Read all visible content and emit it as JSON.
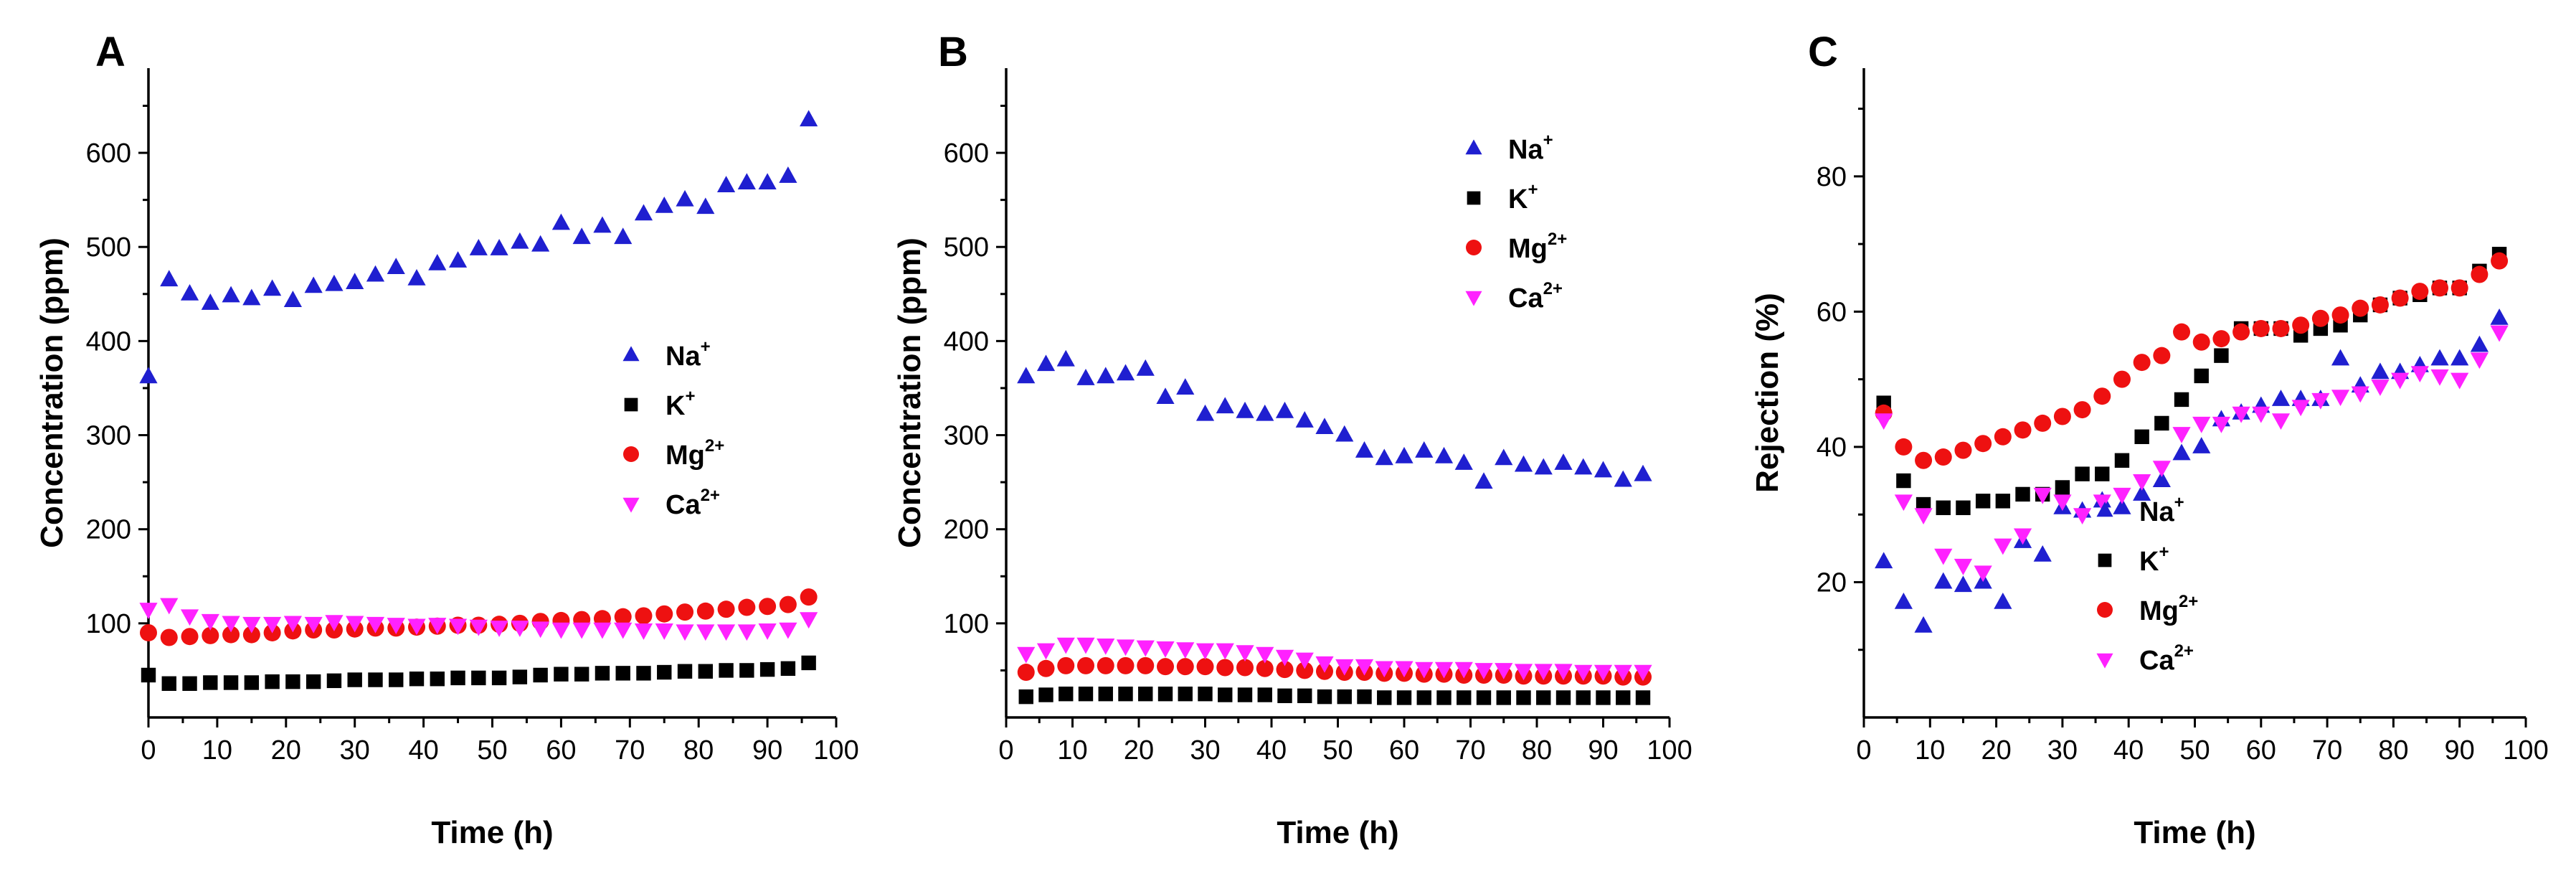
{
  "chart_data": [
    {
      "type": "scatter",
      "panel": "A",
      "xlabel": "Time (h)",
      "ylabel": "Concentration (ppm)",
      "xlim": [
        0,
        100
      ],
      "ylim": [
        0,
        690
      ],
      "xticks": [
        0,
        10,
        20,
        30,
        40,
        50,
        60,
        70,
        80,
        90,
        100
      ],
      "yticks": [
        100,
        200,
        300,
        400,
        500,
        600
      ],
      "legend_position": "center-right",
      "series": [
        {
          "name": "Na",
          "sup": "+",
          "marker": "triangle-up",
          "color": "#1f1fd0",
          "x": [
            0,
            3,
            6,
            9,
            12,
            15,
            18,
            21,
            24,
            27,
            30,
            33,
            36,
            39,
            42,
            45,
            48,
            51,
            54,
            57,
            60,
            63,
            66,
            69,
            72,
            75,
            78,
            81,
            84,
            87,
            90,
            93,
            96
          ],
          "y": [
            362,
            465,
            450,
            440,
            448,
            445,
            455,
            443,
            458,
            460,
            462,
            470,
            478,
            466,
            482,
            485,
            498,
            498,
            505,
            502,
            525,
            510,
            522,
            510,
            535,
            543,
            550,
            542,
            565,
            568,
            568,
            575,
            635
          ]
        },
        {
          "name": "K",
          "sup": "+",
          "marker": "square",
          "color": "#000000",
          "x": [
            0,
            3,
            6,
            9,
            12,
            15,
            18,
            21,
            24,
            27,
            30,
            33,
            36,
            39,
            42,
            45,
            48,
            51,
            54,
            57,
            60,
            63,
            66,
            69,
            72,
            75,
            78,
            81,
            84,
            87,
            90,
            93,
            96
          ],
          "y": [
            45,
            36,
            36,
            37,
            37,
            37,
            38,
            38,
            38,
            39,
            40,
            40,
            40,
            41,
            41,
            42,
            42,
            42,
            43,
            45,
            46,
            46,
            47,
            47,
            47,
            48,
            49,
            49,
            50,
            50,
            51,
            52,
            58
          ]
        },
        {
          "name": "Mg",
          "sup": "2+",
          "marker": "circle",
          "color": "#ee1111",
          "x": [
            0,
            3,
            6,
            9,
            12,
            15,
            18,
            21,
            24,
            27,
            30,
            33,
            36,
            39,
            42,
            45,
            48,
            51,
            54,
            57,
            60,
            63,
            66,
            69,
            72,
            75,
            78,
            81,
            84,
            87,
            90,
            93,
            96
          ],
          "y": [
            90,
            85,
            86,
            87,
            88,
            88,
            90,
            92,
            93,
            93,
            94,
            95,
            95,
            96,
            97,
            98,
            98,
            99,
            100,
            102,
            103,
            104,
            105,
            107,
            108,
            110,
            112,
            113,
            115,
            117,
            118,
            120,
            128
          ]
        },
        {
          "name": "Ca",
          "sup": "2+",
          "marker": "triangle-down",
          "color": "#ff22ff",
          "x": [
            0,
            3,
            6,
            9,
            12,
            15,
            18,
            21,
            24,
            27,
            30,
            33,
            36,
            39,
            42,
            45,
            48,
            51,
            54,
            57,
            60,
            63,
            66,
            69,
            72,
            75,
            78,
            81,
            84,
            87,
            90,
            93,
            96
          ],
          "y": [
            115,
            120,
            108,
            103,
            101,
            100,
            100,
            101,
            100,
            102,
            101,
            100,
            99,
            98,
            99,
            98,
            97,
            96,
            96,
            95,
            94,
            94,
            94,
            94,
            93,
            93,
            92,
            92,
            92,
            92,
            93,
            94,
            105
          ]
        }
      ]
    },
    {
      "type": "scatter",
      "panel": "B",
      "xlabel": "Time (h)",
      "ylabel": "Concentration (ppm)",
      "xlim": [
        0,
        100
      ],
      "ylim": [
        0,
        690
      ],
      "xticks": [
        0,
        10,
        20,
        30,
        40,
        50,
        60,
        70,
        80,
        90,
        100
      ],
      "yticks": [
        100,
        200,
        300,
        400,
        500,
        600
      ],
      "legend_position": "top-right",
      "series": [
        {
          "name": "Na",
          "sup": "+",
          "marker": "triangle-up",
          "color": "#1f1fd0",
          "x": [
            3,
            6,
            9,
            12,
            15,
            18,
            21,
            24,
            27,
            30,
            33,
            36,
            39,
            42,
            45,
            48,
            51,
            54,
            57,
            60,
            63,
            66,
            69,
            72,
            75,
            78,
            81,
            84,
            87,
            90,
            93,
            96
          ],
          "y": [
            362,
            375,
            380,
            360,
            362,
            365,
            370,
            340,
            350,
            322,
            330,
            325,
            322,
            325,
            315,
            308,
            300,
            283,
            275,
            277,
            283,
            277,
            270,
            250,
            275,
            268,
            265,
            270,
            265,
            262,
            252,
            258
          ]
        },
        {
          "name": "K",
          "sup": "+",
          "marker": "square",
          "color": "#000000",
          "x": [
            3,
            6,
            9,
            12,
            15,
            18,
            21,
            24,
            27,
            30,
            33,
            36,
            39,
            42,
            45,
            48,
            51,
            54,
            57,
            60,
            63,
            66,
            69,
            72,
            75,
            78,
            81,
            84,
            87,
            90,
            93,
            96
          ],
          "y": [
            22,
            24,
            25,
            25,
            25,
            25,
            25,
            25,
            25,
            25,
            24,
            24,
            24,
            23,
            23,
            22,
            22,
            22,
            21,
            21,
            21,
            21,
            21,
            21,
            21,
            21,
            21,
            21,
            21,
            21,
            21,
            21
          ]
        },
        {
          "name": "Mg",
          "sup": "2+",
          "marker": "circle",
          "color": "#ee1111",
          "x": [
            3,
            6,
            9,
            12,
            15,
            18,
            21,
            24,
            27,
            30,
            33,
            36,
            39,
            42,
            45,
            48,
            51,
            54,
            57,
            60,
            63,
            66,
            69,
            72,
            75,
            78,
            81,
            84,
            87,
            90,
            93,
            96
          ],
          "y": [
            48,
            52,
            55,
            55,
            55,
            55,
            55,
            54,
            54,
            54,
            53,
            53,
            52,
            51,
            50,
            49,
            48,
            48,
            47,
            47,
            46,
            46,
            45,
            45,
            45,
            44,
            44,
            44,
            44,
            44,
            43,
            43
          ]
        },
        {
          "name": "Ca",
          "sup": "2+",
          "marker": "triangle-down",
          "color": "#ff22ff",
          "x": [
            3,
            6,
            9,
            12,
            15,
            18,
            21,
            24,
            27,
            30,
            33,
            36,
            39,
            42,
            45,
            48,
            51,
            54,
            57,
            60,
            63,
            66,
            69,
            72,
            75,
            78,
            81,
            84,
            87,
            90,
            93,
            96
          ],
          "y": [
            68,
            72,
            78,
            78,
            77,
            76,
            75,
            74,
            73,
            72,
            72,
            70,
            68,
            65,
            62,
            58,
            55,
            55,
            53,
            53,
            52,
            52,
            52,
            51,
            51,
            50,
            50,
            50,
            49,
            49,
            49,
            49
          ]
        }
      ]
    },
    {
      "type": "scatter",
      "panel": "C",
      "xlabel": "Time (h)",
      "ylabel": "Rejection (%)",
      "xlim": [
        0,
        100
      ],
      "ylim": [
        0,
        96
      ],
      "xticks": [
        0,
        10,
        20,
        30,
        40,
        50,
        60,
        70,
        80,
        90,
        100
      ],
      "yticks": [
        20,
        40,
        60,
        80
      ],
      "legend_position": "bottom-right",
      "series": [
        {
          "name": "Na",
          "sup": "+",
          "marker": "triangle-up",
          "color": "#1f1fd0",
          "x": [
            3,
            6,
            9,
            12,
            15,
            18,
            21,
            24,
            27,
            30,
            33,
            36,
            39,
            42,
            45,
            48,
            51,
            54,
            57,
            60,
            63,
            66,
            69,
            72,
            75,
            78,
            81,
            84,
            87,
            90,
            93,
            96
          ],
          "y": [
            23,
            17,
            13.5,
            20,
            19.5,
            20,
            17,
            26,
            24,
            31,
            30.5,
            32,
            31,
            33,
            35,
            39,
            40,
            44,
            45,
            46,
            47,
            47,
            47,
            53,
            49,
            51,
            51,
            52,
            53,
            53,
            55,
            59
          ]
        },
        {
          "name": "K",
          "sup": "+",
          "marker": "square",
          "color": "#000000",
          "x": [
            3,
            6,
            9,
            12,
            15,
            18,
            21,
            24,
            27,
            30,
            33,
            36,
            39,
            42,
            45,
            48,
            51,
            54,
            57,
            60,
            63,
            66,
            69,
            72,
            75,
            78,
            81,
            84,
            87,
            90,
            93,
            96
          ],
          "y": [
            46.5,
            35,
            31.5,
            31,
            31,
            32,
            32,
            33,
            33,
            34,
            36,
            36,
            38,
            41.5,
            43.5,
            47,
            50.5,
            53.5,
            57.5,
            57.5,
            57.5,
            56.5,
            57.5,
            58,
            59.5,
            61,
            62,
            62.5,
            63.5,
            63.5,
            66,
            68.5
          ]
        },
        {
          "name": "Mg",
          "sup": "2+",
          "marker": "circle",
          "color": "#ee1111",
          "x": [
            3,
            6,
            9,
            12,
            15,
            18,
            21,
            24,
            27,
            30,
            33,
            36,
            39,
            42,
            45,
            48,
            51,
            54,
            57,
            60,
            63,
            66,
            69,
            72,
            75,
            78,
            81,
            84,
            87,
            90,
            93,
            96
          ],
          "y": [
            45,
            40,
            38,
            38.5,
            39.5,
            40.5,
            41.5,
            42.5,
            43.5,
            44.5,
            45.5,
            47.5,
            50,
            52.5,
            53.5,
            57,
            55.5,
            56,
            57,
            57.5,
            57.5,
            58,
            59,
            59.5,
            60.5,
            61,
            62,
            63,
            63.5,
            63.5,
            65.5,
            67.5
          ]
        },
        {
          "name": "Ca",
          "sup": "2+",
          "marker": "triangle-down",
          "color": "#ff22ff",
          "x": [
            3,
            6,
            9,
            12,
            15,
            18,
            21,
            24,
            27,
            30,
            33,
            36,
            39,
            42,
            45,
            48,
            51,
            54,
            57,
            60,
            63,
            66,
            69,
            72,
            75,
            78,
            81,
            84,
            87,
            90,
            93,
            96
          ],
          "y": [
            44,
            32,
            30,
            24,
            22.5,
            21.5,
            25.5,
            27,
            33,
            32,
            30,
            32,
            33,
            35,
            37,
            42,
            43.5,
            43.5,
            45,
            45,
            44,
            46,
            47,
            47.5,
            48,
            49,
            50,
            51,
            50.5,
            50,
            53,
            57
          ]
        }
      ]
    }
  ]
}
